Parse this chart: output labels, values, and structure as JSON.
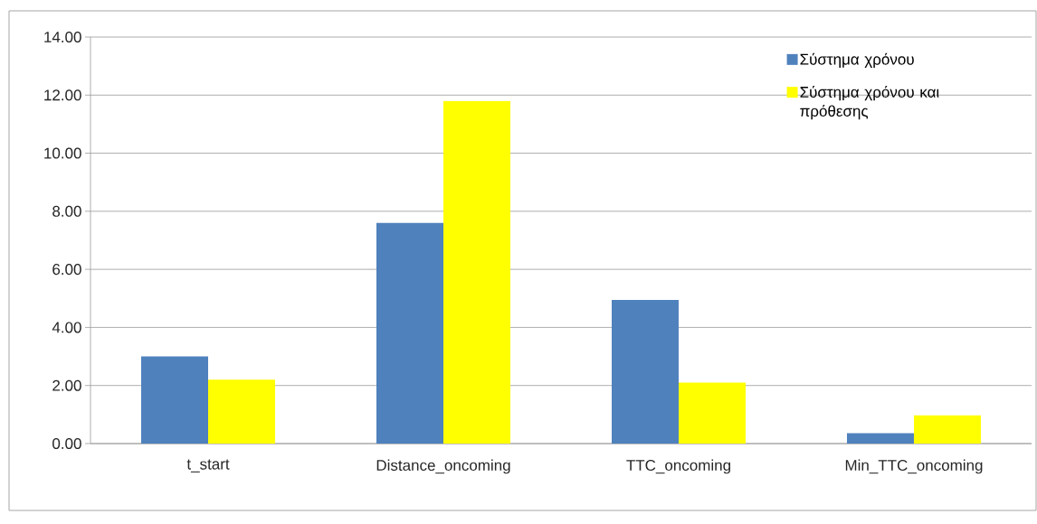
{
  "chart_data": {
    "type": "bar",
    "categories": [
      "t_start",
      "Distance_oncoming",
      "TTC_oncoming",
      "Min_TTC_oncoming"
    ],
    "series": [
      {
        "name": "Σύστημα χρόνου",
        "color": "#4f81bd",
        "values": [
          3.0,
          7.6,
          4.95,
          0.36
        ]
      },
      {
        "name": "Σύστημα χρόνου και πρόθεσης",
        "color": "#ffff00",
        "values": [
          2.2,
          11.8,
          2.1,
          0.97
        ]
      }
    ],
    "ylim": [
      0,
      14
    ],
    "yticks": [
      {
        "value": 0,
        "label": "0.00"
      },
      {
        "value": 2,
        "label": "2.00"
      },
      {
        "value": 4,
        "label": "4.00"
      },
      {
        "value": 6,
        "label": "6.00"
      },
      {
        "value": 8,
        "label": "8.00"
      },
      {
        "value": 10,
        "label": "10.00"
      },
      {
        "value": 12,
        "label": "12.00"
      },
      {
        "value": 14,
        "label": "14.00"
      }
    ],
    "grid": "y",
    "legend": "top right"
  }
}
